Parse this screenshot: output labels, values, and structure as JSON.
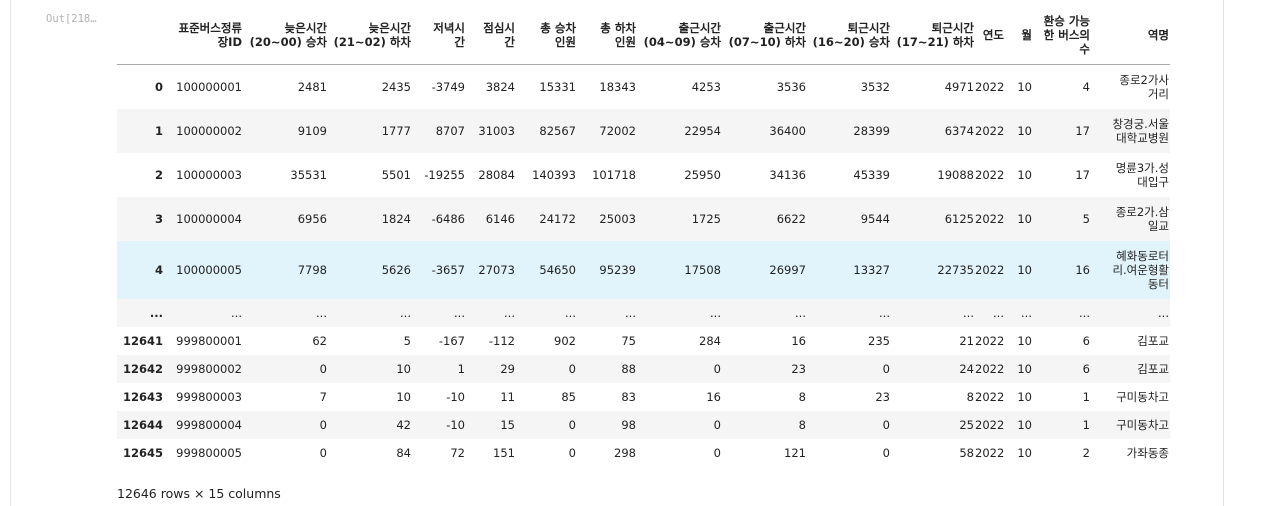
{
  "prompt_label": "Out[218…",
  "columns": [
    [
      "표준버스정류",
      "장ID"
    ],
    [
      "늦은시간",
      "(20~00) 승차"
    ],
    [
      "늦은시간",
      "(21~02) 하차"
    ],
    [
      "저녁시",
      "간"
    ],
    [
      "점심시",
      "간"
    ],
    [
      "총 승차",
      "인원"
    ],
    [
      "총 하차",
      "인원"
    ],
    [
      "출근시간",
      "(04~09) 승차"
    ],
    [
      "출근시간",
      "(07~10) 하차"
    ],
    [
      "퇴근시간",
      "(16~20) 승차"
    ],
    [
      "퇴근시간",
      "(17~21) 하차"
    ],
    [
      "연도"
    ],
    [
      "월"
    ],
    [
      "환승 가능",
      "한 버스의",
      "수"
    ],
    [
      "역명"
    ]
  ],
  "rows": [
    {
      "index": "0",
      "cells": [
        "100000001",
        "2481",
        "2435",
        "-3749",
        "3824",
        "15331",
        "18343",
        "4253",
        "3536",
        "3532",
        "4971",
        "2022",
        "10",
        "4"
      ],
      "station": [
        "종로2가사",
        "거리"
      ]
    },
    {
      "index": "1",
      "cells": [
        "100000002",
        "9109",
        "1777",
        "8707",
        "31003",
        "82567",
        "72002",
        "22954",
        "36400",
        "28399",
        "6374",
        "2022",
        "10",
        "17"
      ],
      "station": [
        "창경궁.서울",
        "대학교병원"
      ]
    },
    {
      "index": "2",
      "cells": [
        "100000003",
        "35531",
        "5501",
        "-19255",
        "28084",
        "140393",
        "101718",
        "25950",
        "34136",
        "45339",
        "19088",
        "2022",
        "10",
        "17"
      ],
      "station": [
        "명륜3가.성",
        "대입구"
      ]
    },
    {
      "index": "3",
      "cells": [
        "100000004",
        "6956",
        "1824",
        "-6486",
        "6146",
        "24172",
        "25003",
        "1725",
        "6622",
        "9544",
        "6125",
        "2022",
        "10",
        "5"
      ],
      "station": [
        "종로2가.삼",
        "일교"
      ]
    },
    {
      "index": "4",
      "cells": [
        "100000005",
        "7798",
        "5626",
        "-3657",
        "27073",
        "54650",
        "95239",
        "17508",
        "26997",
        "13327",
        "22735",
        "2022",
        "10",
        "16"
      ],
      "station": [
        "혜화동로터",
        "리.여운형활",
        "동터"
      ]
    },
    {
      "index": "...",
      "cells": [
        "...",
        "...",
        "...",
        "...",
        "...",
        "...",
        "...",
        "...",
        "...",
        "...",
        "...",
        "...",
        "...",
        "..."
      ],
      "station": [
        "..."
      ]
    },
    {
      "index": "12641",
      "cells": [
        "999800001",
        "62",
        "5",
        "-167",
        "-112",
        "902",
        "75",
        "284",
        "16",
        "235",
        "21",
        "2022",
        "10",
        "6"
      ],
      "station": [
        "김포교"
      ]
    },
    {
      "index": "12642",
      "cells": [
        "999800002",
        "0",
        "10",
        "1",
        "29",
        "0",
        "88",
        "0",
        "23",
        "0",
        "24",
        "2022",
        "10",
        "6"
      ],
      "station": [
        "김포교"
      ]
    },
    {
      "index": "12643",
      "cells": [
        "999800003",
        "7",
        "10",
        "-10",
        "11",
        "85",
        "83",
        "16",
        "8",
        "23",
        "8",
        "2022",
        "10",
        "1"
      ],
      "station": [
        "구미동차고"
      ]
    },
    {
      "index": "12644",
      "cells": [
        "999800004",
        "0",
        "42",
        "-10",
        "15",
        "0",
        "98",
        "0",
        "8",
        "0",
        "25",
        "2022",
        "10",
        "1"
      ],
      "station": [
        "구미동차고"
      ]
    },
    {
      "index": "12645",
      "cells": [
        "999800005",
        "0",
        "84",
        "72",
        "151",
        "0",
        "298",
        "0",
        "121",
        "0",
        "58",
        "2022",
        "10",
        "2"
      ],
      "station": [
        "가좌동종"
      ]
    }
  ],
  "footer": "12646 rows × 15 columns"
}
